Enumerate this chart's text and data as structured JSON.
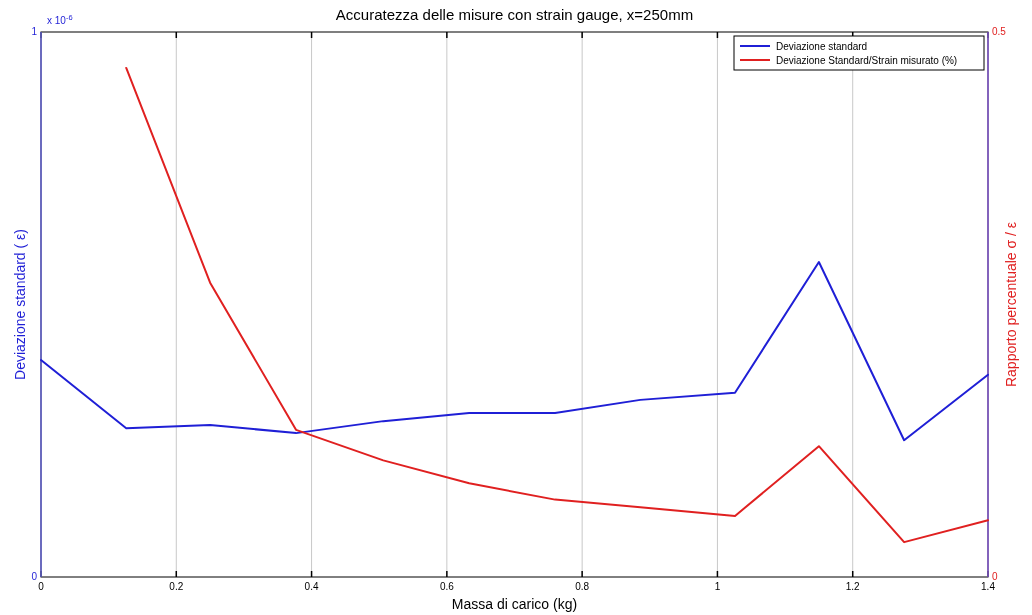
{
  "chart_data": {
    "type": "line",
    "title": "Accuratezza delle misure con strain gauge, x=250mm",
    "xlabel": "Massa di carico (kg)",
    "ylabel": "Deviazione standard ( ε)",
    "y2label": "Rapporto percentuale σ / ε",
    "x": [
      0,
      0.126,
      0.25,
      0.377,
      0.506,
      0.633,
      0.76,
      0.886,
      1.026,
      1.15,
      1.276,
      1.4
    ],
    "series": [
      {
        "name": "Deviazione standard",
        "color": "#1f1fd6",
        "values": [
          0.398,
          0.273,
          0.279,
          0.264,
          0.286,
          0.301,
          0.301,
          0.325,
          0.338,
          0.578,
          0.251,
          0.371
        ]
      },
      {
        "name": "Deviazione Standard/Strain misurato (%)",
        "color": "#e02020",
        "axis": "y2",
        "values": [
          null,
          0.467,
          0.27,
          0.135,
          0.107,
          0.086,
          0.071,
          0.064,
          0.056,
          0.12,
          0.032,
          0.052
        ]
      }
    ],
    "xlim": [
      0,
      1.4
    ],
    "xticks": [
      0,
      0.2,
      0.4,
      0.6,
      0.8,
      1,
      1.2,
      1.4
    ],
    "ylim": [
      0,
      1
    ],
    "yticks": [
      0,
      1
    ],
    "y2lim": [
      0,
      0.5
    ],
    "y2ticks": [
      0,
      0.5
    ],
    "annotations": [
      "x 10$^{-6}$"
    ],
    "grid": "x",
    "legend": "top right",
    "line_style": "solid",
    "marker": "none"
  }
}
